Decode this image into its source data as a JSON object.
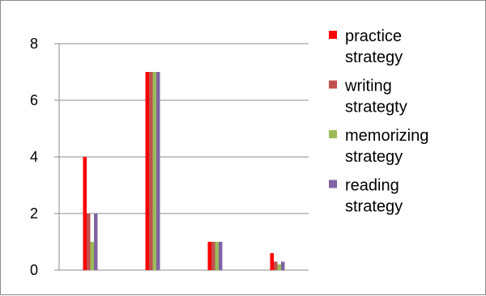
{
  "chart_data": {
    "type": "bar",
    "categories": [
      "",
      "",
      "",
      ""
    ],
    "series": [
      {
        "name": "practice strategy",
        "color": "#ff0000",
        "values": [
          4,
          7,
          1,
          0.6
        ]
      },
      {
        "name": "writing strategty",
        "color": "#c0504d",
        "values": [
          2,
          7,
          1,
          0.3
        ]
      },
      {
        "name": "memorizing strategy",
        "color": "#9bbb59",
        "values": [
          1,
          7,
          1,
          0.2
        ]
      },
      {
        "name": "reading strategy",
        "color": "#8064a2",
        "values": [
          2,
          7,
          1,
          0.3
        ]
      }
    ],
    "y_ticks": [
      0,
      2,
      4,
      6,
      8
    ],
    "ylim": [
      0,
      8
    ],
    "grid": true,
    "legend_position": "right"
  }
}
